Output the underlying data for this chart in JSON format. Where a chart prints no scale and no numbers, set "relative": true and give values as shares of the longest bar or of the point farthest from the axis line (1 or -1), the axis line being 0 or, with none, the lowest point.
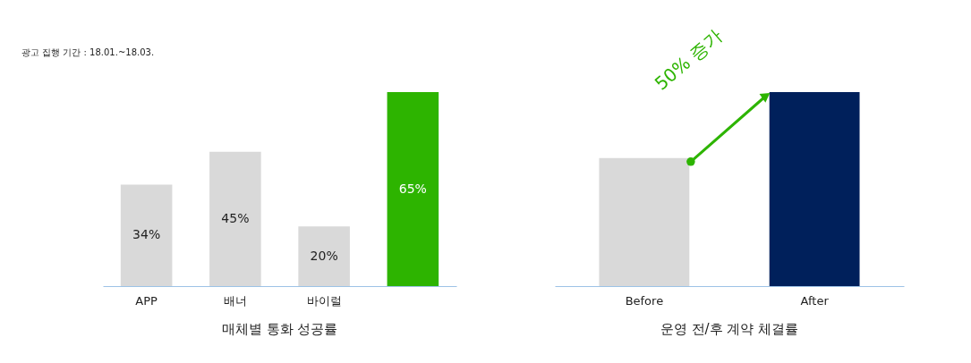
{
  "chart_data": [
    {
      "type": "bar",
      "subtitle": "광고 집행 기간 : 18.01.~18.03.",
      "title": "매체별 통화 성공률",
      "categories": [
        "APP",
        "배너",
        "바이럴",
        null
      ],
      "values": [
        34,
        45,
        20,
        65
      ],
      "colors": [
        "#d9d9d9",
        "#d9d9d9",
        "#d9d9d9",
        "#2db400"
      ],
      "data_labels": true,
      "value_labels": [
        "34%",
        "45%",
        "20%",
        "65%"
      ]
    },
    {
      "type": "bar",
      "title": "운영 전/후 계약 체결률",
      "categories": [
        "Before",
        "After"
      ],
      "values": [
        0.66,
        1
      ],
      "colors": [
        "#d9d9d9",
        "#00205b"
      ],
      "relative": true,
      "annotations": [
        "50% 증가"
      ]
    }
  ]
}
